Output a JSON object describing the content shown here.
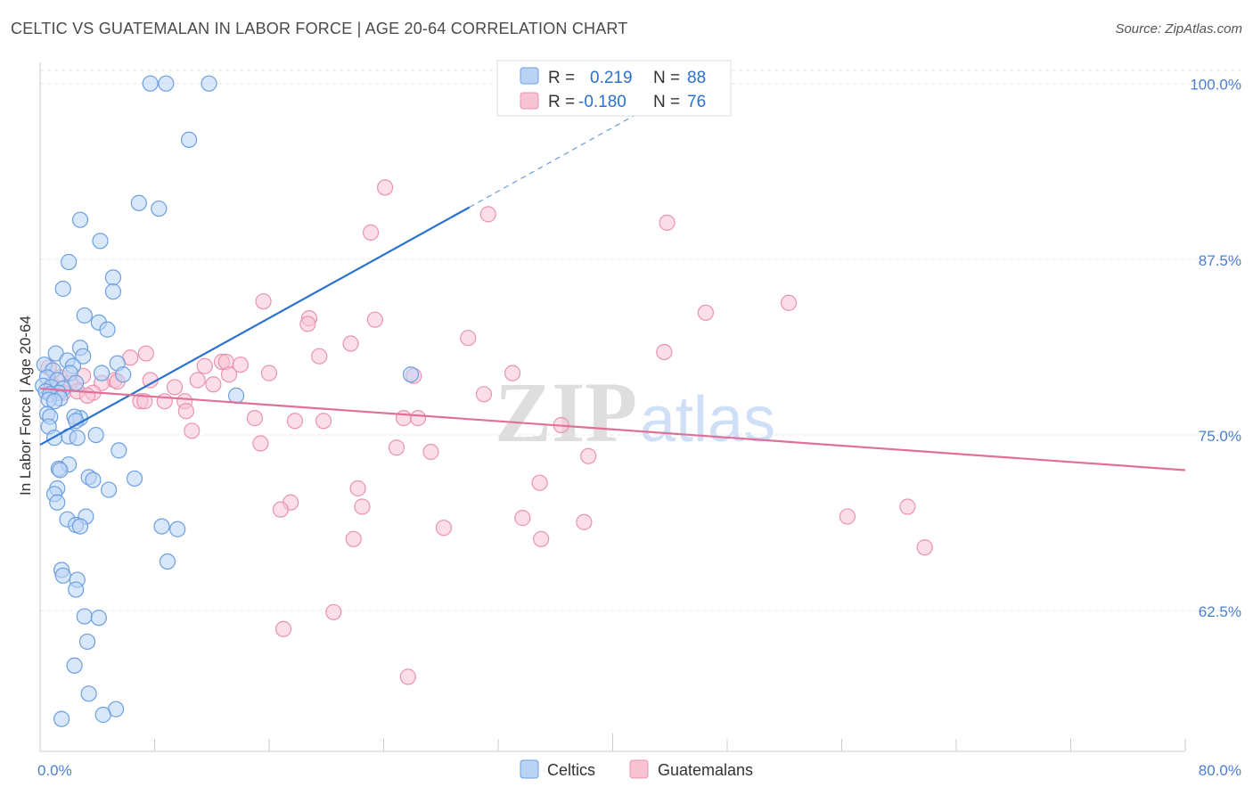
{
  "header": {
    "title": "CELTIC VS GUATEMALAN IN LABOR FORCE | AGE 20-64 CORRELATION CHART",
    "source": "Source: ZipAtlas.com"
  },
  "colors": {
    "celtic_fill": "#b9d3f5",
    "celtic_stroke": "#6b9fe0",
    "celtic_line": "#2b72d0",
    "guat_fill": "#f8c3d3",
    "guat_stroke": "#e993b0",
    "guat_line": "#e0709a",
    "tick_blue": "#4a7fd0",
    "grid": "#e6e6e6"
  },
  "legend": {
    "row1": {
      "r_label": "R =",
      "r_value": "0.219",
      "n_label": "N =",
      "n_value": "88"
    },
    "row2": {
      "r_label": "R =",
      "r_value": "-0.180",
      "n_label": "N =",
      "n_value": "76"
    }
  },
  "watermark": {
    "zip": "ZIP",
    "atlas": "atlas"
  },
  "chart_data": {
    "type": "scatter",
    "title": "CELTIC VS GUATEMALAN IN LABOR FORCE | AGE 20-64 CORRELATION CHART",
    "xlabel": "",
    "ylabel": "In Labor Force | Age 20-64",
    "xlim": [
      0,
      80
    ],
    "ylim": [
      52.5,
      101.5
    ],
    "x_tick_labels": [
      "0.0%",
      "80.0%"
    ],
    "y_ticks": [
      62.5,
      75.0,
      87.5,
      100.0
    ],
    "y_tick_labels": [
      "62.5%",
      "75.0%",
      "87.5%",
      "100.0%"
    ],
    "grid": true,
    "legend_position": "top-center",
    "series": [
      {
        "name": "Celtics",
        "R": 0.219,
        "N": 88,
        "trend": {
          "x0": 0,
          "y0": 74.3,
          "x1": 30,
          "y1": 91.2,
          "dash_to_x": 45,
          "dash_to_y": 99.7
        },
        "points": [
          [
            7.7,
            100
          ],
          [
            8.8,
            100
          ],
          [
            11.8,
            100
          ],
          [
            10.4,
            96
          ],
          [
            6.9,
            91.5
          ],
          [
            8.3,
            91.1
          ],
          [
            2.8,
            90.3
          ],
          [
            4.2,
            88.8
          ],
          [
            2.0,
            87.3
          ],
          [
            5.1,
            86.2
          ],
          [
            1.6,
            85.4
          ],
          [
            5.1,
            85.2
          ],
          [
            3.1,
            83.5
          ],
          [
            4.1,
            83.0
          ],
          [
            4.7,
            82.5
          ],
          [
            2.8,
            81.2
          ],
          [
            1.1,
            80.8
          ],
          [
            3.0,
            80.6
          ],
          [
            1.9,
            80.3
          ],
          [
            5.4,
            80.1
          ],
          [
            0.3,
            80.0
          ],
          [
            2.3,
            79.9
          ],
          [
            0.9,
            79.6
          ],
          [
            2.1,
            79.4
          ],
          [
            4.3,
            79.4
          ],
          [
            5.8,
            79.3
          ],
          [
            25.9,
            79.3
          ],
          [
            0.5,
            79.1
          ],
          [
            1.2,
            78.9
          ],
          [
            2.5,
            78.7
          ],
          [
            0.2,
            78.5
          ],
          [
            0.8,
            78.4
          ],
          [
            1.6,
            78.3
          ],
          [
            0.4,
            78.1
          ],
          [
            1.3,
            78.0
          ],
          [
            0.7,
            77.9
          ],
          [
            13.7,
            77.8
          ],
          [
            1.4,
            77.6
          ],
          [
            0.6,
            77.5
          ],
          [
            1.0,
            77.4
          ],
          [
            0.5,
            76.5
          ],
          [
            0.7,
            76.3
          ],
          [
            2.8,
            76.2
          ],
          [
            2.4,
            76.3
          ],
          [
            2.5,
            76.0
          ],
          [
            0.6,
            75.6
          ],
          [
            3.9,
            75.0
          ],
          [
            2.0,
            74.9
          ],
          [
            1.0,
            74.8
          ],
          [
            2.6,
            74.8
          ],
          [
            5.5,
            73.9
          ],
          [
            2.0,
            72.9
          ],
          [
            1.3,
            72.6
          ],
          [
            1.4,
            72.5
          ],
          [
            3.4,
            72.0
          ],
          [
            3.7,
            71.8
          ],
          [
            6.6,
            71.9
          ],
          [
            4.8,
            71.1
          ],
          [
            1.2,
            71.2
          ],
          [
            1.0,
            70.8
          ],
          [
            1.2,
            70.2
          ],
          [
            3.2,
            69.2
          ],
          [
            1.9,
            69.0
          ],
          [
            2.5,
            68.6
          ],
          [
            2.8,
            68.5
          ],
          [
            8.5,
            68.5
          ],
          [
            9.6,
            68.3
          ],
          [
            8.9,
            66.0
          ],
          [
            1.5,
            65.4
          ],
          [
            1.6,
            65.0
          ],
          [
            2.6,
            64.7
          ],
          [
            2.5,
            64.0
          ],
          [
            3.1,
            62.1
          ],
          [
            4.1,
            62.0
          ],
          [
            3.3,
            60.3
          ],
          [
            2.4,
            58.6
          ],
          [
            3.4,
            56.6
          ],
          [
            5.3,
            55.5
          ],
          [
            4.4,
            55.1
          ],
          [
            1.5,
            54.8
          ]
        ]
      },
      {
        "name": "Guatemalans",
        "R": -0.18,
        "N": 76,
        "trend": {
          "x0": 0,
          "y0": 78.3,
          "x1": 80,
          "y1": 72.5
        },
        "points": [
          [
            24.1,
            92.6
          ],
          [
            31.3,
            90.7
          ],
          [
            43.8,
            90.1
          ],
          [
            23.1,
            89.4
          ],
          [
            15.6,
            84.5
          ],
          [
            52.3,
            84.4
          ],
          [
            46.5,
            83.7
          ],
          [
            18.8,
            83.3
          ],
          [
            23.4,
            83.2
          ],
          [
            18.7,
            82.9
          ],
          [
            29.9,
            81.9
          ],
          [
            21.7,
            81.5
          ],
          [
            7.4,
            80.8
          ],
          [
            43.6,
            80.9
          ],
          [
            19.5,
            80.6
          ],
          [
            6.3,
            80.5
          ],
          [
            12.7,
            80.2
          ],
          [
            13.0,
            80.2
          ],
          [
            14.0,
            80.0
          ],
          [
            11.5,
            79.9
          ],
          [
            0.6,
            79.8
          ],
          [
            16.0,
            79.4
          ],
          [
            33.0,
            79.4
          ],
          [
            13.2,
            79.3
          ],
          [
            26.1,
            79.2
          ],
          [
            3.0,
            79.2
          ],
          [
            1.4,
            79.1
          ],
          [
            11.0,
            78.9
          ],
          [
            7.7,
            78.9
          ],
          [
            5.2,
            78.9
          ],
          [
            5.4,
            78.8
          ],
          [
            4.3,
            78.7
          ],
          [
            2.1,
            78.7
          ],
          [
            0.8,
            78.6
          ],
          [
            12.1,
            78.6
          ],
          [
            9.4,
            78.4
          ],
          [
            2.6,
            78.1
          ],
          [
            1.6,
            78.0
          ],
          [
            3.7,
            78.0
          ],
          [
            3.3,
            77.8
          ],
          [
            31.0,
            77.9
          ],
          [
            7.0,
            77.4
          ],
          [
            8.7,
            77.4
          ],
          [
            7.3,
            77.4
          ],
          [
            10.1,
            77.4
          ],
          [
            10.2,
            76.7
          ],
          [
            15.0,
            76.2
          ],
          [
            25.4,
            76.2
          ],
          [
            26.4,
            76.2
          ],
          [
            17.8,
            76.0
          ],
          [
            19.8,
            76.0
          ],
          [
            36.4,
            75.7
          ],
          [
            10.6,
            75.3
          ],
          [
            15.4,
            74.4
          ],
          [
            24.9,
            74.1
          ],
          [
            27.3,
            73.8
          ],
          [
            38.3,
            73.5
          ],
          [
            34.9,
            71.6
          ],
          [
            22.2,
            71.2
          ],
          [
            17.5,
            70.2
          ],
          [
            16.8,
            69.7
          ],
          [
            22.5,
            69.9
          ],
          [
            60.6,
            69.9
          ],
          [
            56.4,
            69.2
          ],
          [
            33.7,
            69.1
          ],
          [
            38.0,
            68.8
          ],
          [
            28.2,
            68.4
          ],
          [
            21.9,
            67.6
          ],
          [
            35.0,
            67.6
          ],
          [
            61.8,
            67.0
          ],
          [
            20.5,
            62.4
          ],
          [
            17.0,
            61.2
          ],
          [
            25.7,
            57.8
          ]
        ]
      }
    ]
  },
  "bottom_legend": {
    "celtics": "Celtics",
    "guatemalans": "Guatemalans"
  }
}
